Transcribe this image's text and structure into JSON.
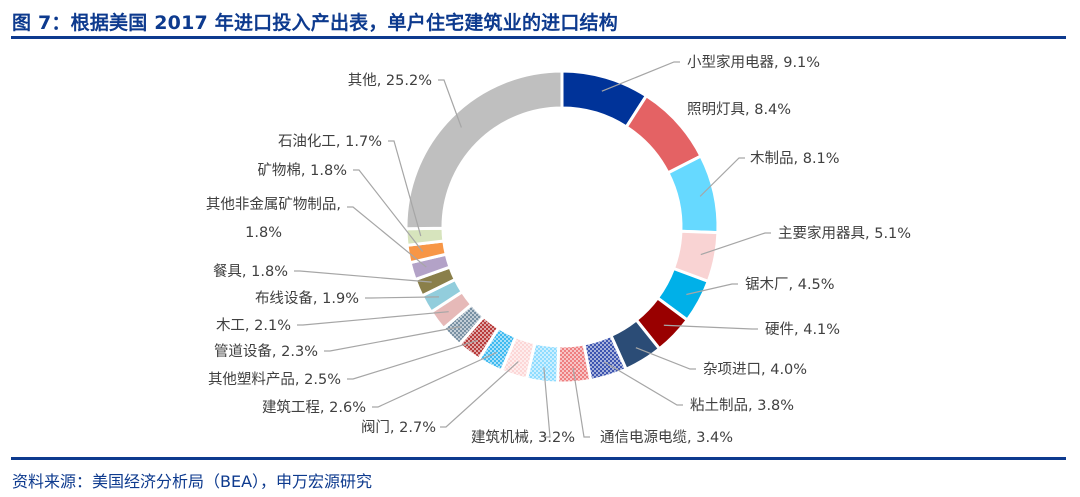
{
  "title": "图 7：根据美国 2017 年进口投入产出表，单户住宅建筑业的进口结构",
  "source": "资料来源：美国经济分析局（BEA），申万宏源研究",
  "colors": {
    "title": "#0d3a8e"
  },
  "chart_data": {
    "type": "pie",
    "donut": true,
    "legend": "none",
    "direction": "clockwise from top",
    "slices": [
      {
        "label": "小型家用电器",
        "value": 9.1,
        "text": "小型家用电器, 9.1%",
        "color": "#003399",
        "pattern": false
      },
      {
        "label": "照明灯具",
        "value": 8.4,
        "text": "照明灯具, 8.4%",
        "color": "#e46264",
        "pattern": false
      },
      {
        "label": "木制品",
        "value": 8.1,
        "text": "木制品, 8.1%",
        "color": "#66d9ff",
        "pattern": false
      },
      {
        "label": "主要家用器具",
        "value": 5.1,
        "text": "主要家用器具, 5.1%",
        "color": "#f9d3d3",
        "pattern": false
      },
      {
        "label": "锯木厂",
        "value": 4.5,
        "text": "锯木厂, 4.5%",
        "color": "#00b0e8",
        "pattern": false
      },
      {
        "label": "硬件",
        "value": 4.1,
        "text": "硬件, 4.1%",
        "color": "#990000",
        "pattern": false
      },
      {
        "label": "杂项进口",
        "value": 4.0,
        "text": "杂项进口, 4.0%",
        "color": "#2b4c76",
        "pattern": false
      },
      {
        "label": "粘土制品",
        "value": 3.8,
        "text": "粘土制品, 3.8%",
        "color": "#3d55b0",
        "pattern": true
      },
      {
        "label": "通信电源电缆",
        "value": 3.4,
        "text": "通信电源电缆, 3.4%",
        "color": "#ee7f80",
        "pattern": true
      },
      {
        "label": "建筑机械",
        "value": 3.2,
        "text": "建筑机械, 3.2%",
        "color": "#8fdcff",
        "pattern": true
      },
      {
        "label": "阀门",
        "value": 2.7,
        "text": "阀门, 2.7%",
        "color": "#fcd6d6",
        "pattern": true
      },
      {
        "label": "建筑工程",
        "value": 2.6,
        "text": "建筑工程, 2.6%",
        "color": "#3fbaf0",
        "pattern": true
      },
      {
        "label": "其他塑料产品",
        "value": 2.5,
        "text": "其他塑料产品, 2.5%",
        "color": "#b83c3c",
        "pattern": true
      },
      {
        "label": "管道设备",
        "value": 2.3,
        "text": "管道设备, 2.3%",
        "color": "#7890a3",
        "pattern": true
      },
      {
        "label": "木工",
        "value": 2.1,
        "text": "木工, 2.1%",
        "color": "#e6b9b8",
        "pattern": false
      },
      {
        "label": "布线设备",
        "value": 1.9,
        "text": "布线设备, 1.9%",
        "color": "#92cddc",
        "pattern": false
      },
      {
        "label": "餐具",
        "value": 1.8,
        "text": "餐具, 1.8%",
        "color": "#8a7f4a",
        "pattern": false
      },
      {
        "label": "其他非金属矿物制品",
        "value": 1.8,
        "text": "其他非金属矿物制品,",
        "text2": "1.8%",
        "color": "#b3a2c7",
        "pattern": false
      },
      {
        "label": "矿物棉",
        "value": 1.8,
        "text": "矿物棉, 1.8%",
        "color": "#f79646",
        "pattern": false
      },
      {
        "label": "石油化工",
        "value": 1.7,
        "text": "石油化工, 1.7%",
        "color": "#d7e4bd",
        "pattern": false
      },
      {
        "label": "其他",
        "value": 25.2,
        "text": "其他, 25.2%",
        "color": "#bfbfbf",
        "pattern": false
      }
    ]
  }
}
